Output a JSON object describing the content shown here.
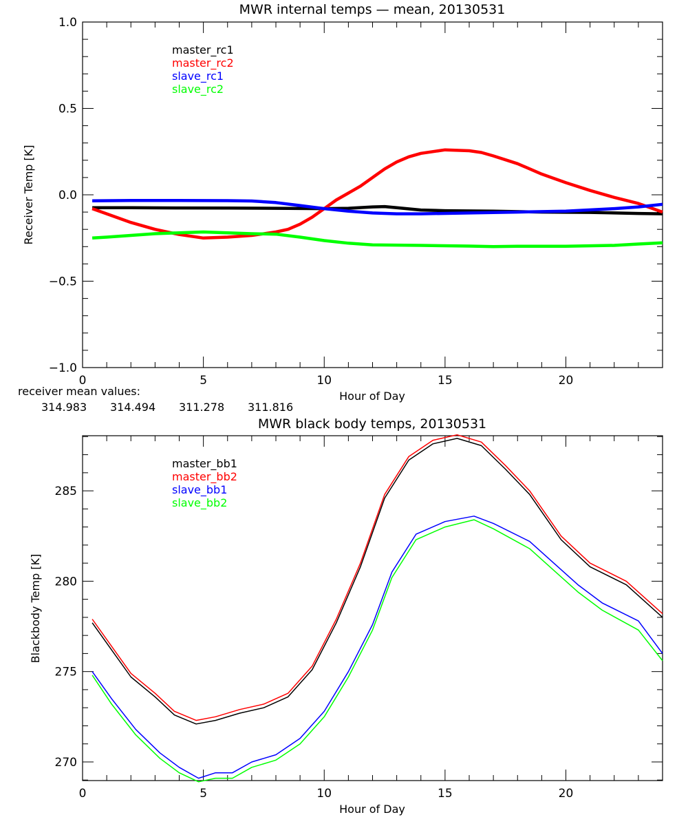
{
  "chart_data": [
    {
      "type": "line",
      "title": "MWR internal temps — mean, 20130531",
      "xlabel": "Hour of Day",
      "ylabel": "Receiver Temp [K]",
      "xlim": [
        0,
        24
      ],
      "ylim": [
        -1.0,
        1.0
      ],
      "xticks": [
        0,
        5,
        10,
        15,
        20
      ],
      "xtick_labels": [
        "0",
        "5",
        "10",
        "15",
        "20"
      ],
      "yticks": [
        -1.0,
        -0.5,
        0.0,
        0.5,
        1.0
      ],
      "ytick_labels": [
        "−1.0",
        "−0.5",
        "0.0",
        "0.5",
        "1.0"
      ],
      "grid": false,
      "legend_position": "top-left",
      "series": [
        {
          "name": "master_rc1",
          "color": "#000000",
          "x": [
            0.4,
            2,
            4,
            6,
            8,
            10,
            11,
            12,
            12.5,
            13,
            14,
            15,
            17,
            19,
            21,
            23,
            24
          ],
          "y": [
            -0.075,
            -0.075,
            -0.076,
            -0.077,
            -0.078,
            -0.08,
            -0.078,
            -0.07,
            -0.068,
            -0.075,
            -0.088,
            -0.092,
            -0.095,
            -0.1,
            -0.102,
            -0.108,
            -0.11
          ]
        },
        {
          "name": "master_rc2",
          "color": "#ff0000",
          "x": [
            0.4,
            1,
            2,
            3,
            4,
            5,
            6,
            7,
            8,
            8.5,
            9,
            9.5,
            10,
            10.5,
            11,
            11.5,
            12,
            12.5,
            13,
            13.5,
            14,
            15,
            16,
            16.5,
            17,
            18,
            19,
            20,
            21,
            22,
            23,
            24
          ],
          "y": [
            -0.08,
            -0.11,
            -0.16,
            -0.2,
            -0.23,
            -0.25,
            -0.245,
            -0.235,
            -0.215,
            -0.2,
            -0.17,
            -0.13,
            -0.08,
            -0.03,
            0.01,
            0.05,
            0.1,
            0.15,
            0.19,
            0.22,
            0.24,
            0.26,
            0.255,
            0.245,
            0.225,
            0.18,
            0.12,
            0.07,
            0.025,
            -0.015,
            -0.05,
            -0.1
          ]
        },
        {
          "name": "slave_rc1",
          "color": "#0000ff",
          "x": [
            0.4,
            2,
            4,
            6,
            7,
            8,
            9,
            10,
            11,
            12,
            13,
            14,
            16,
            18,
            20,
            22,
            23,
            24
          ],
          "y": [
            -0.035,
            -0.033,
            -0.033,
            -0.034,
            -0.036,
            -0.045,
            -0.062,
            -0.08,
            -0.095,
            -0.105,
            -0.11,
            -0.11,
            -0.105,
            -0.1,
            -0.095,
            -0.08,
            -0.07,
            -0.055
          ]
        },
        {
          "name": "slave_rc2",
          "color": "#00ff00",
          "x": [
            0.4,
            1,
            2,
            3,
            4,
            5,
            6,
            7,
            8,
            9,
            10,
            11,
            12,
            14,
            16,
            17,
            18,
            20,
            22,
            23,
            24
          ],
          "y": [
            -0.25,
            -0.245,
            -0.235,
            -0.225,
            -0.22,
            -0.215,
            -0.22,
            -0.225,
            -0.228,
            -0.245,
            -0.265,
            -0.28,
            -0.29,
            -0.293,
            -0.297,
            -0.3,
            -0.298,
            -0.298,
            -0.293,
            -0.285,
            -0.278
          ]
        }
      ],
      "annotation": {
        "label": "receiver mean values:",
        "values": [
          {
            "text": "314.983",
            "color": "#000000"
          },
          {
            "text": "314.494",
            "color": "#ff0000"
          },
          {
            "text": "311.278",
            "color": "#0000ff"
          },
          {
            "text": "311.816",
            "color": "#00ff00"
          }
        ]
      }
    },
    {
      "type": "line",
      "title": "MWR black body temps, 20130531",
      "xlabel": "Hour of Day",
      "ylabel": "Blackbody Temp [K]",
      "xlim": [
        0,
        24
      ],
      "ylim": [
        268.97,
        288.05
      ],
      "xticks": [
        0,
        5,
        10,
        15,
        20
      ],
      "xtick_labels": [
        "0",
        "5",
        "10",
        "15",
        "20"
      ],
      "yticks": [
        270,
        275,
        280,
        285
      ],
      "ytick_labels": [
        "270",
        "275",
        "280",
        "285"
      ],
      "grid": false,
      "legend_position": "top-left",
      "series": [
        {
          "name": "master_bb1",
          "color": "#000000",
          "x": [
            0.4,
            1.2,
            2,
            3,
            3.8,
            4.7,
            5.5,
            6.5,
            7.5,
            8.5,
            9.5,
            10.5,
            11.5,
            12.5,
            13.5,
            14.5,
            15.5,
            16.5,
            17.5,
            18.5,
            19.8,
            21,
            22.5,
            24
          ],
          "y": [
            277.7,
            276.2,
            274.7,
            273.6,
            272.6,
            272.1,
            272.3,
            272.7,
            273.0,
            273.6,
            275.1,
            277.7,
            280.8,
            284.6,
            286.7,
            287.6,
            287.9,
            287.5,
            286.2,
            284.8,
            282.3,
            280.8,
            279.8,
            278.0
          ]
        },
        {
          "name": "master_bb2",
          "color": "#ff0000",
          "x": [
            0.4,
            1.2,
            2,
            3,
            3.8,
            4.7,
            5.5,
            6.5,
            7.5,
            8.5,
            9.5,
            10.5,
            11.5,
            12.5,
            13.5,
            14.5,
            15.5,
            16.5,
            17.5,
            18.5,
            19.8,
            21,
            22.5,
            24
          ],
          "y": [
            277.9,
            276.4,
            274.9,
            273.8,
            272.8,
            272.3,
            272.5,
            272.9,
            273.2,
            273.8,
            275.3,
            277.9,
            281.0,
            284.8,
            286.9,
            287.8,
            288.1,
            287.7,
            286.4,
            285.0,
            282.5,
            281.0,
            280.0,
            278.2
          ]
        },
        {
          "name": "slave_bb1",
          "color": "#0000ff",
          "x": [
            0.4,
            1.2,
            2.2,
            3.2,
            4,
            4.8,
            5.5,
            6.2,
            7,
            8,
            9,
            10,
            11,
            12,
            12.8,
            13.8,
            15,
            16.2,
            17,
            18.5,
            19.5,
            20.5,
            21.5,
            23,
            24
          ],
          "y": [
            275.0,
            273.5,
            271.8,
            270.5,
            269.7,
            269.1,
            269.4,
            269.4,
            270.0,
            270.4,
            271.3,
            272.8,
            275.0,
            277.6,
            280.5,
            282.6,
            283.3,
            283.6,
            283.2,
            282.2,
            281.0,
            279.8,
            278.8,
            277.8,
            276.0
          ]
        },
        {
          "name": "slave_bb2",
          "color": "#00ff00",
          "x": [
            0.4,
            1.2,
            2.2,
            3.2,
            4,
            4.8,
            5.5,
            6.2,
            7,
            8,
            9,
            10,
            11,
            12,
            12.8,
            13.8,
            15,
            16.2,
            17,
            18.5,
            19.5,
            20.5,
            21.5,
            23,
            24
          ],
          "y": [
            274.8,
            273.2,
            271.5,
            270.2,
            269.4,
            268.9,
            269.1,
            269.1,
            269.7,
            270.1,
            271.0,
            272.5,
            274.7,
            277.3,
            280.2,
            282.3,
            283.0,
            283.4,
            282.9,
            281.8,
            280.6,
            279.4,
            278.4,
            277.3,
            275.6
          ]
        }
      ]
    }
  ]
}
